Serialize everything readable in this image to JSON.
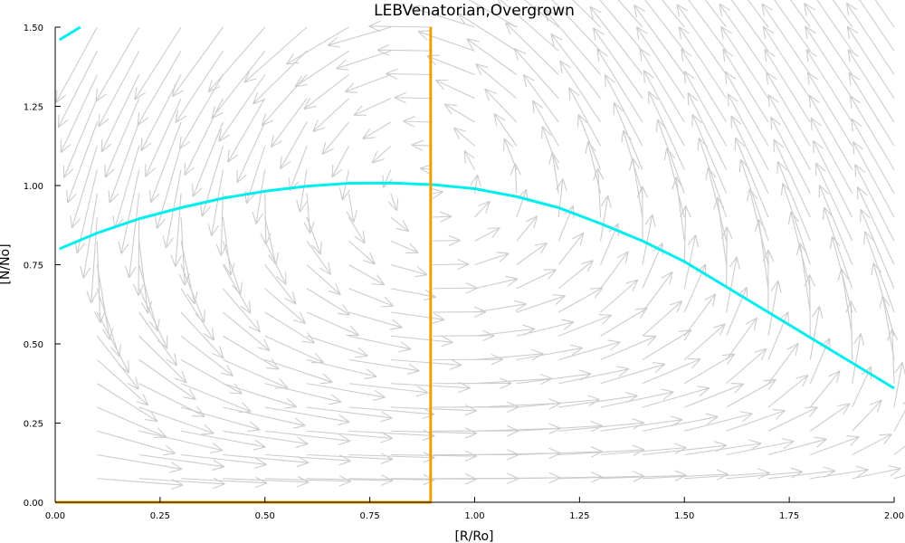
{
  "chart_data": {
    "type": "line",
    "title": "LEBVenatorian,Overgrown",
    "xlabel": "[R/Ro]",
    "ylabel": "[N/No]",
    "xlim": [
      0.0,
      2.0
    ],
    "ylim": [
      0.0,
      1.5
    ],
    "x_ticks": [
      "0.00",
      "0.25",
      "0.50",
      "0.75",
      "1.00",
      "1.25",
      "1.50",
      "1.75",
      "2.00"
    ],
    "y_ticks": [
      "0.00",
      "0.25",
      "0.50",
      "0.75",
      "1.00",
      "1.25",
      "1.50"
    ],
    "grid": false,
    "series": [
      {
        "color": "#00eeee",
        "x": [
          0.01,
          0.1,
          0.2,
          0.3,
          0.4,
          0.5,
          0.6,
          0.7,
          0.8,
          0.9,
          1.0,
          1.1,
          1.2,
          1.3,
          1.4,
          1.5,
          1.6,
          1.7,
          1.8,
          1.9,
          2.0
        ],
        "y": [
          0.8,
          0.85,
          0.895,
          0.93,
          0.96,
          0.982,
          0.998,
          1.007,
          1.008,
          1.003,
          0.99,
          0.965,
          0.93,
          0.88,
          0.825,
          0.76,
          0.68,
          0.6,
          0.52,
          0.44,
          0.36
        ]
      },
      {
        "color": "#00eeee",
        "x": [
          0.01,
          0.06
        ],
        "y": [
          1.46,
          1.5
        ]
      },
      {
        "color": "#f0a000",
        "x": [
          0.0,
          0.895,
          0.895
        ],
        "y": [
          0.0,
          0.0,
          1.5
        ]
      }
    ],
    "vector_field": {
      "color": "#cccccc",
      "x_nullcline": 0.895,
      "curve_nullcline": "cyan series"
    }
  }
}
